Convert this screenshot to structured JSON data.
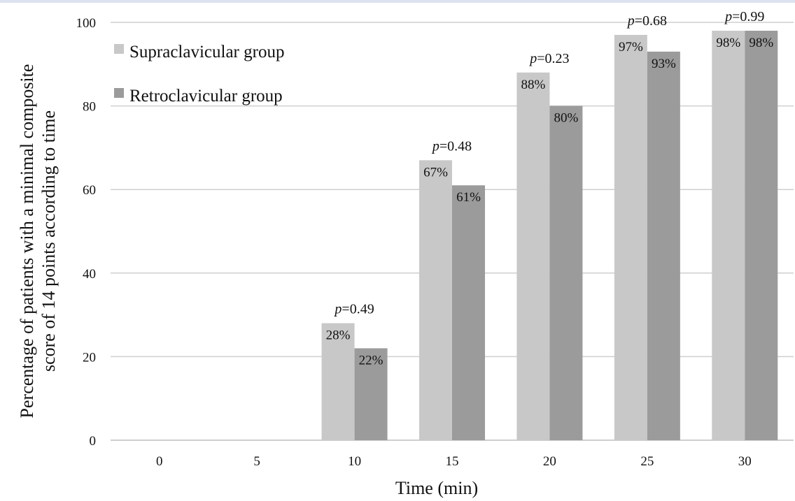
{
  "chart_data": {
    "type": "bar",
    "xlabel": "Time (min)",
    "ylabel_lines": [
      "Percentage of patients with a minimal composite",
      "score of 14 points according to time"
    ],
    "ylim": [
      0,
      100
    ],
    "yticks": [
      "0",
      "20",
      "40",
      "60",
      "80",
      "100"
    ],
    "categories": [
      "0",
      "5",
      "10",
      "15",
      "20",
      "25",
      "30"
    ],
    "series": [
      {
        "name": "Supraclavicular group",
        "color": "#c8c8c8",
        "values": [
          0,
          0,
          28,
          67,
          88,
          97,
          98
        ],
        "labels": [
          "",
          "",
          "28%",
          "67%",
          "88%",
          "97%",
          "98%"
        ]
      },
      {
        "name": "Retroclavicular group",
        "color": "#9b9b9b",
        "values": [
          0,
          0,
          22,
          61,
          80,
          93,
          98
        ],
        "labels": [
          "",
          "",
          "22%",
          "61%",
          "80%",
          "93%",
          "98%"
        ]
      }
    ],
    "annotations": [
      {
        "category": "10",
        "italic": "p",
        "text": "=0.49"
      },
      {
        "category": "15",
        "italic": "p",
        "text": "=0.48"
      },
      {
        "category": "20",
        "italic": "p",
        "text": "=0.23"
      },
      {
        "category": "25",
        "italic": "p",
        "text": "=0.68"
      },
      {
        "category": "30",
        "italic": "p",
        "text": "=0.99"
      }
    ],
    "legend_position": "top-left",
    "grid": true
  }
}
